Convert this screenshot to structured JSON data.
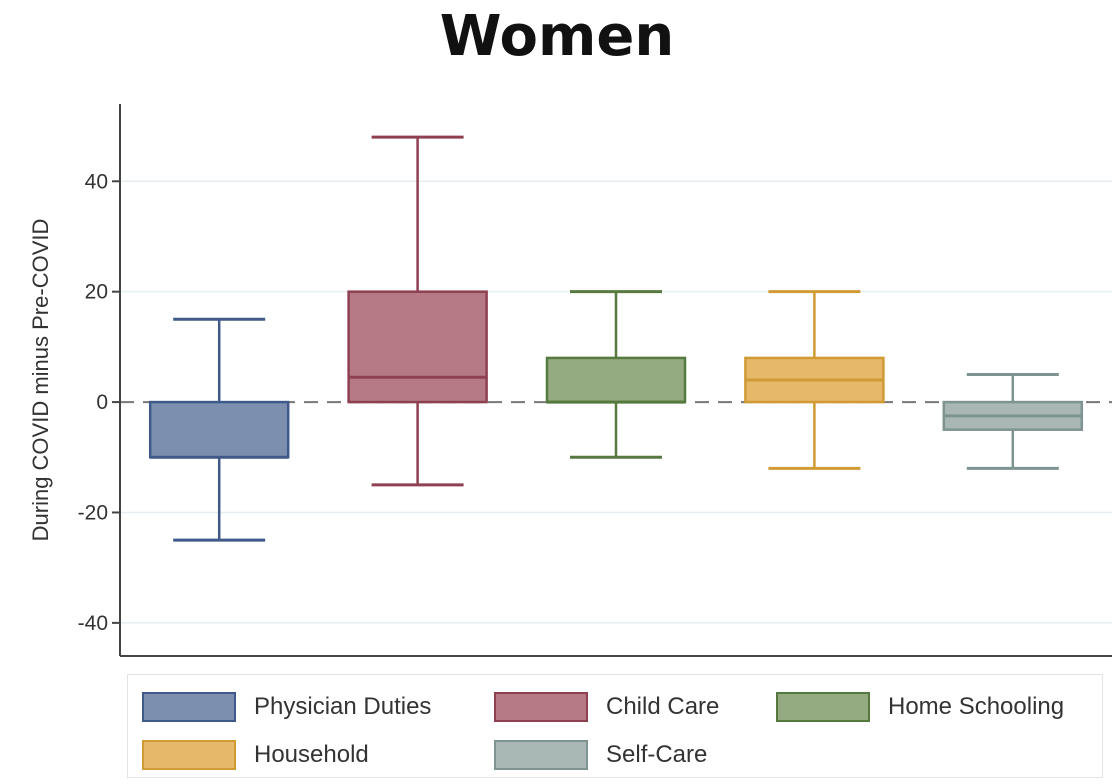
{
  "chart_data": {
    "type": "box",
    "title": "Women",
    "ylabel": "During COVID minus Pre-COVID",
    "xlabel": "",
    "ylim": [
      -46,
      54
    ],
    "yticks": [
      40,
      20,
      0,
      -20,
      -40
    ],
    "grid": true,
    "reference_line": 0,
    "legend_position": "bottom",
    "series": [
      {
        "name": "Physician Duties",
        "color": "#7d8fae",
        "edge": "#3f5a8a",
        "whisker_low": -25,
        "q1": -10,
        "median": -10,
        "q3": 0,
        "whisker_high": 15
      },
      {
        "name": "Child Care",
        "color": "#b57a86",
        "edge": "#8e3f50",
        "whisker_low": -15,
        "q1": 0,
        "median": 4.5,
        "q3": 20,
        "whisker_high": 48
      },
      {
        "name": "Home Schooling",
        "color": "#94aa80",
        "edge": "#56793f",
        "whisker_low": -10,
        "q1": 0,
        "median": 0,
        "q3": 8,
        "whisker_high": 20
      },
      {
        "name": "Household",
        "color": "#e6b869",
        "edge": "#d09a35",
        "whisker_low": -12,
        "q1": 0,
        "median": 4,
        "q3": 8,
        "whisker_high": 20
      },
      {
        "name": "Self-Care",
        "color": "#a9b8b4",
        "edge": "#7d9490",
        "whisker_low": -12,
        "q1": -5,
        "median": -2.5,
        "q3": 0,
        "whisker_high": 5
      }
    ]
  }
}
